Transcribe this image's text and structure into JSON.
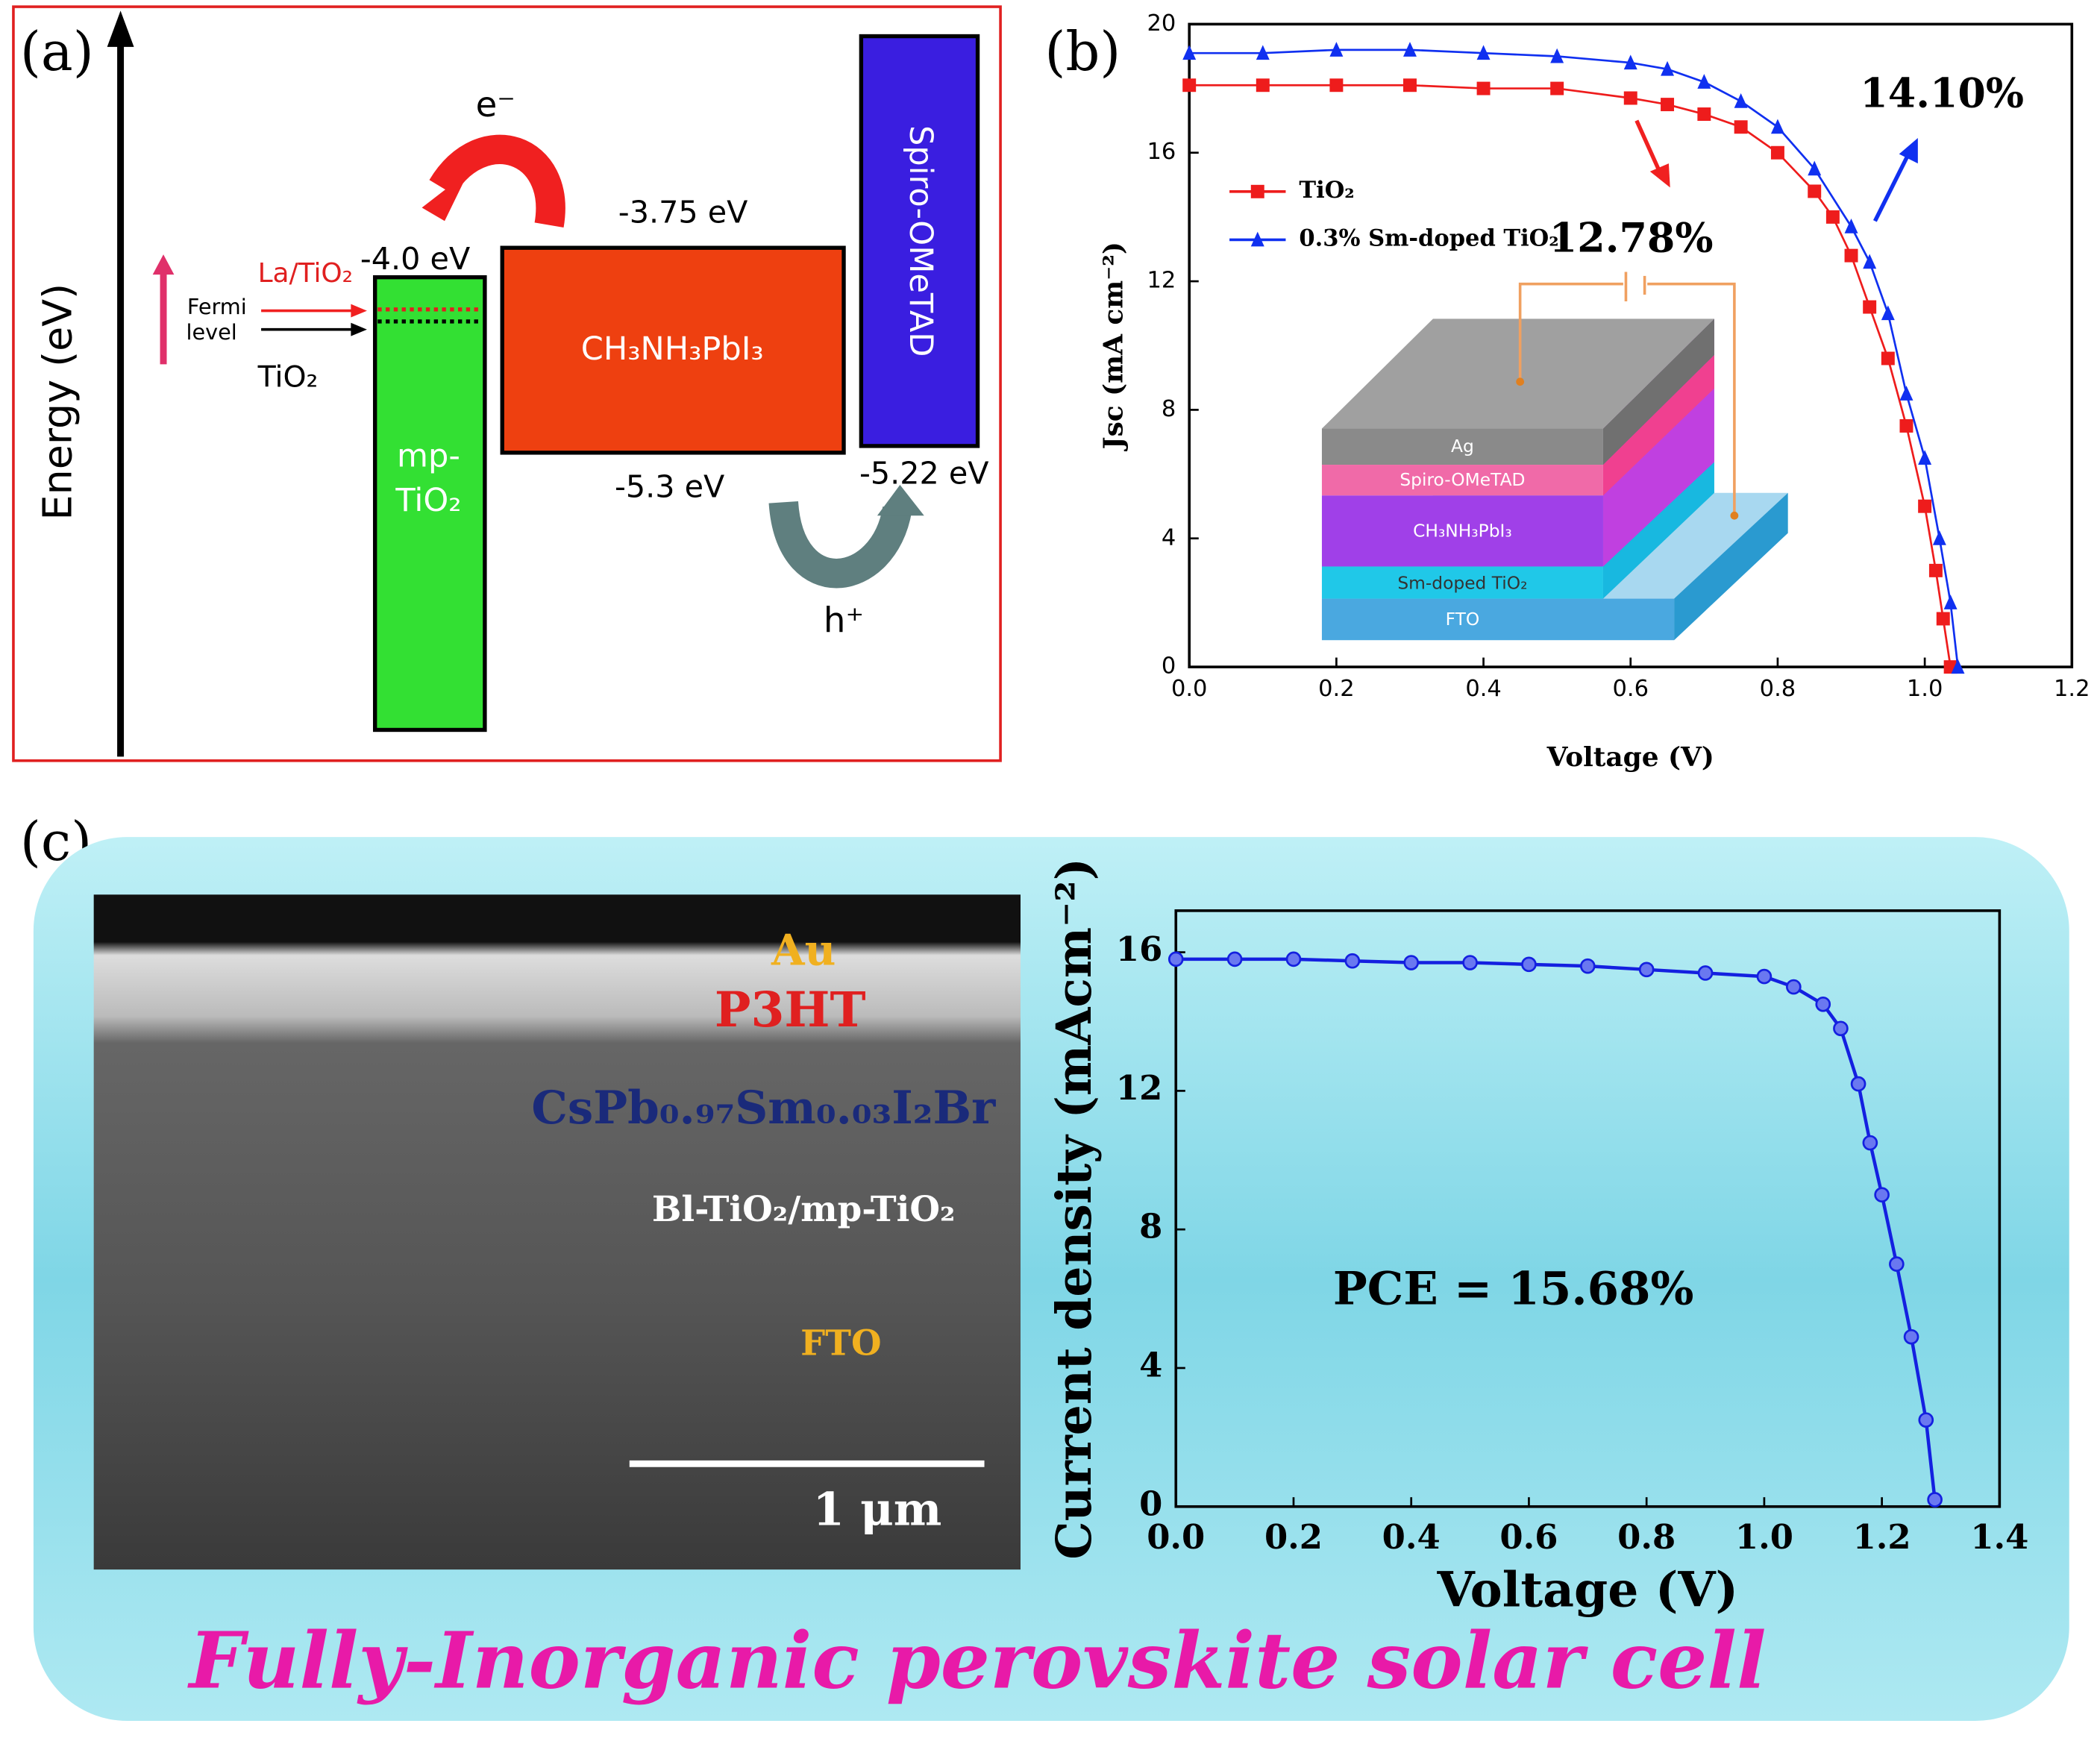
{
  "panel_labels": [
    "(a)",
    "(b)",
    "(c)"
  ],
  "panel_a": {
    "axis_label": "Energy (eV)",
    "electron": "e⁻",
    "hole": "h⁺",
    "cbm_tio2": "-4.0 eV",
    "cbm_perovskite": "-3.75 eV",
    "vbm_perovskite": "-5.3 eV",
    "homo_spiro": "-5.22 eV",
    "la_tio2": "La/TiO₂",
    "fermi_level": [
      "Fermi",
      "level"
    ],
    "tio2": "TiO₂",
    "layer_tio2": [
      "mp-",
      "TiO₂"
    ],
    "layer_perovskite": "CH₃NH₃PbI₃",
    "layer_spiro": "Spiro-OMeTAD"
  },
  "chart_data": [
    {
      "type": "line",
      "x_label": "Voltage (V)",
      "y_label": "Jsc (mA cm⁻²)",
      "xlim": [
        0,
        1.2
      ],
      "ylim": [
        0,
        20
      ],
      "xticks": [
        {
          "value": 0,
          "label": "0.0"
        },
        {
          "value": 0.2,
          "label": "0.2"
        },
        {
          "value": 0.4,
          "label": "0.4"
        },
        {
          "value": 0.6,
          "label": "0.6"
        },
        {
          "value": 0.8,
          "label": "0.8"
        },
        {
          "value": 1.0,
          "label": "1.0"
        },
        {
          "value": 1.2,
          "label": "1.2"
        }
      ],
      "yticks": [
        0,
        4,
        8,
        12,
        16,
        20
      ],
      "legend": "upper left",
      "series": [
        {
          "name": "TiO₂",
          "color": "#ee1c1c",
          "marker": "square",
          "x": [
            0,
            0.1,
            0.2,
            0.3,
            0.4,
            0.5,
            0.6,
            0.65,
            0.7,
            0.75,
            0.8,
            0.85,
            0.875,
            0.9,
            0.925,
            0.95,
            0.975,
            1.0,
            1.015,
            1.025,
            1.035
          ],
          "values": [
            18.1,
            18.1,
            18.1,
            18.1,
            18.0,
            18.0,
            17.7,
            17.5,
            17.2,
            16.8,
            16.0,
            14.8,
            14.0,
            12.8,
            11.2,
            9.6,
            7.5,
            5.0,
            3.0,
            1.5,
            0
          ]
        },
        {
          "name": "0.3% Sm-doped TiO₂",
          "color": "#1030f0",
          "marker": "triangle",
          "x": [
            0,
            0.1,
            0.2,
            0.3,
            0.4,
            0.5,
            0.6,
            0.65,
            0.7,
            0.75,
            0.8,
            0.85,
            0.9,
            0.925,
            0.95,
            0.975,
            1.0,
            1.02,
            1.035,
            1.045
          ],
          "values": [
            19.1,
            19.1,
            19.2,
            19.2,
            19.1,
            19.0,
            18.8,
            18.6,
            18.2,
            17.6,
            16.8,
            15.5,
            13.7,
            12.6,
            11.0,
            8.5,
            6.5,
            4.0,
            2.0,
            0
          ]
        }
      ],
      "annotations": [
        "12.78%",
        "14.10%"
      ],
      "inset_layers": [
        "Ag",
        "Spiro-OMeTAD",
        "CH₃NH₃PbI₃",
        "Sm-doped TiO₂",
        "FTO"
      ]
    },
    {
      "type": "line",
      "title": "PCE = 15.68%",
      "x_label": "Voltage (V)",
      "y_label": "Current density (mAcm⁻²)",
      "xlim": [
        0,
        1.4
      ],
      "ylim": [
        0,
        17.2
      ],
      "xticks": [
        {
          "value": 0,
          "label": "0.0"
        },
        {
          "value": 0.2,
          "label": "0.2"
        },
        {
          "value": 0.4,
          "label": "0.4"
        },
        {
          "value": 0.6,
          "label": "0.6"
        },
        {
          "value": 0.8,
          "label": "0.8"
        },
        {
          "value": 1.0,
          "label": "1.0"
        },
        {
          "value": 1.2,
          "label": "1.2"
        },
        {
          "value": 1.4,
          "label": "1.4"
        }
      ],
      "yticks": [
        0,
        4,
        8,
        12,
        16
      ],
      "series": [
        {
          "name": null,
          "color": "#1420e0",
          "marker": "circle",
          "x": [
            0,
            0.1,
            0.2,
            0.3,
            0.4,
            0.5,
            0.6,
            0.7,
            0.8,
            0.9,
            1.0,
            1.05,
            1.1,
            1.13,
            1.16,
            1.18,
            1.2,
            1.225,
            1.25,
            1.275,
            1.29
          ],
          "values": [
            15.8,
            15.8,
            15.8,
            15.75,
            15.7,
            15.7,
            15.65,
            15.6,
            15.5,
            15.4,
            15.3,
            15.0,
            14.5,
            13.8,
            12.2,
            10.5,
            9.0,
            7.0,
            4.9,
            2.5,
            0.2
          ]
        }
      ]
    }
  ],
  "panel_c_image": {
    "labels": [
      "Au",
      "P3HT",
      "CsPb₀.₉₇Sm₀.₀₃I₂Br",
      "Bl-TiO₂/mp-TiO₂",
      "FTO"
    ],
    "scale_bar": "1 μm"
  },
  "caption": "Fully-Inorganic perovskite solar cell"
}
